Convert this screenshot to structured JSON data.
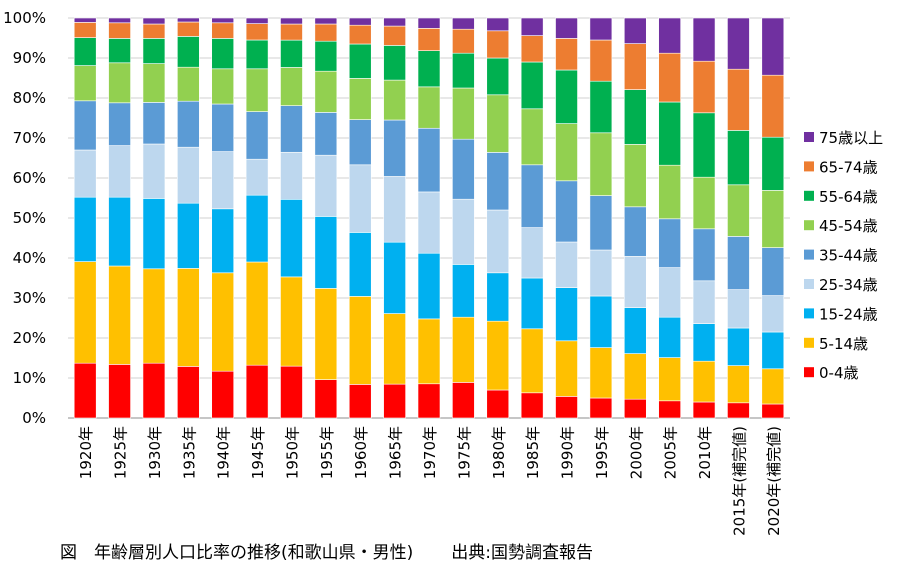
{
  "chart_data": {
    "type": "bar",
    "stacked": true,
    "normalized": true,
    "title": "",
    "xlabel": "",
    "ylabel": "",
    "ylim": [
      0,
      100
    ],
    "y_ticks": [
      "0%",
      "10%",
      "20%",
      "30%",
      "40%",
      "50%",
      "60%",
      "70%",
      "80%",
      "90%",
      "100%"
    ],
    "grid": true,
    "legend_position": "right",
    "categories": [
      "1920年",
      "1925年",
      "1930年",
      "1935年",
      "1940年",
      "1945年",
      "1950年",
      "1955年",
      "1960年",
      "1965年",
      "1970年",
      "1975年",
      "1980年",
      "1985年",
      "1990年",
      "1995年",
      "2000年",
      "2005年",
      "2010年",
      "2015年(補完値)",
      "2020年(補完値)"
    ],
    "series": [
      {
        "name": "0-4歳",
        "color": "#ff0000",
        "values": [
          13.7,
          13.4,
          13.7,
          12.9,
          11.7,
          13.2,
          12.9,
          9.6,
          8.4,
          8.4,
          8.6,
          8.9,
          7.0,
          6.3,
          5.4,
          5.0,
          4.7,
          4.3,
          4.0,
          3.8,
          3.5
        ]
      },
      {
        "name": "5-14歳",
        "color": "#ffc000",
        "values": [
          25.4,
          24.6,
          23.6,
          24.5,
          24.6,
          25.8,
          22.2,
          22.8,
          22.0,
          17.5,
          16.3,
          16.3,
          17.2,
          16.0,
          13.9,
          12.6,
          11.4,
          10.8,
          10.2,
          9.3,
          8.8
        ]
      },
      {
        "name": "15-24歳",
        "color": "#00b0f0",
        "values": [
          16.1,
          17.2,
          17.6,
          16.3,
          16.0,
          16.7,
          19.3,
          18.0,
          16.0,
          17.7,
          16.5,
          13.2,
          12.1,
          12.7,
          13.3,
          12.9,
          11.5,
          10.1,
          9.4,
          9.4,
          9.2
        ]
      },
      {
        "name": "25-34歳",
        "color": "#bdd7ee",
        "values": [
          11.8,
          12.9,
          13.6,
          14.0,
          14.3,
          9.0,
          11.7,
          15.3,
          16.9,
          16.3,
          15.4,
          16.3,
          15.7,
          12.6,
          11.4,
          11.5,
          12.8,
          12.4,
          10.7,
          9.6,
          9.1
        ]
      },
      {
        "name": "35-44歳",
        "color": "#5b9bd5",
        "values": [
          12.3,
          10.7,
          10.4,
          11.5,
          11.9,
          11.9,
          11.6,
          10.7,
          11.3,
          14.0,
          16.0,
          15.0,
          14.4,
          15.7,
          15.3,
          13.6,
          12.4,
          12.2,
          13.0,
          13.3,
          12.0
        ]
      },
      {
        "name": "45-54歳",
        "color": "#92d050",
        "values": [
          8.8,
          10.0,
          9.7,
          8.5,
          8.8,
          10.7,
          9.5,
          10.3,
          10.3,
          9.9,
          10.4,
          12.8,
          14.4,
          14.0,
          14.3,
          15.7,
          15.6,
          13.4,
          12.9,
          12.9,
          14.3
        ]
      },
      {
        "name": "55-64歳",
        "color": "#00b050",
        "values": [
          7.0,
          6.1,
          6.3,
          7.7,
          7.6,
          7.2,
          6.8,
          7.5,
          8.6,
          8.6,
          9.1,
          8.7,
          9.2,
          11.7,
          13.4,
          12.9,
          13.7,
          15.8,
          16.1,
          13.6,
          13.3
        ]
      },
      {
        "name": "65-74歳",
        "color": "#ed7d31",
        "values": [
          3.8,
          3.9,
          3.6,
          3.6,
          3.9,
          4.1,
          4.0,
          4.3,
          4.7,
          4.8,
          5.6,
          6.0,
          6.8,
          6.6,
          7.9,
          10.3,
          11.5,
          12.2,
          12.9,
          15.3,
          15.5
        ]
      },
      {
        "name": "75歳以上",
        "color": "#7030a0",
        "values": [
          1.1,
          1.2,
          1.5,
          1.0,
          1.2,
          1.4,
          1.5,
          1.5,
          1.8,
          2.0,
          2.6,
          2.8,
          3.2,
          4.4,
          5.1,
          5.5,
          6.4,
          8.8,
          10.8,
          12.8,
          14.3
        ]
      }
    ],
    "legend_order": [
      "75歳以上",
      "65-74歳",
      "55-64歳",
      "45-54歳",
      "35-44歳",
      "25-34歳",
      "15-24歳",
      "5-14歳",
      "0-4歳"
    ]
  },
  "caption": {
    "figure_title": "図　年齢層別人口比率の推移(和歌山県・男性)",
    "source": "出典:国勢調査報告"
  }
}
